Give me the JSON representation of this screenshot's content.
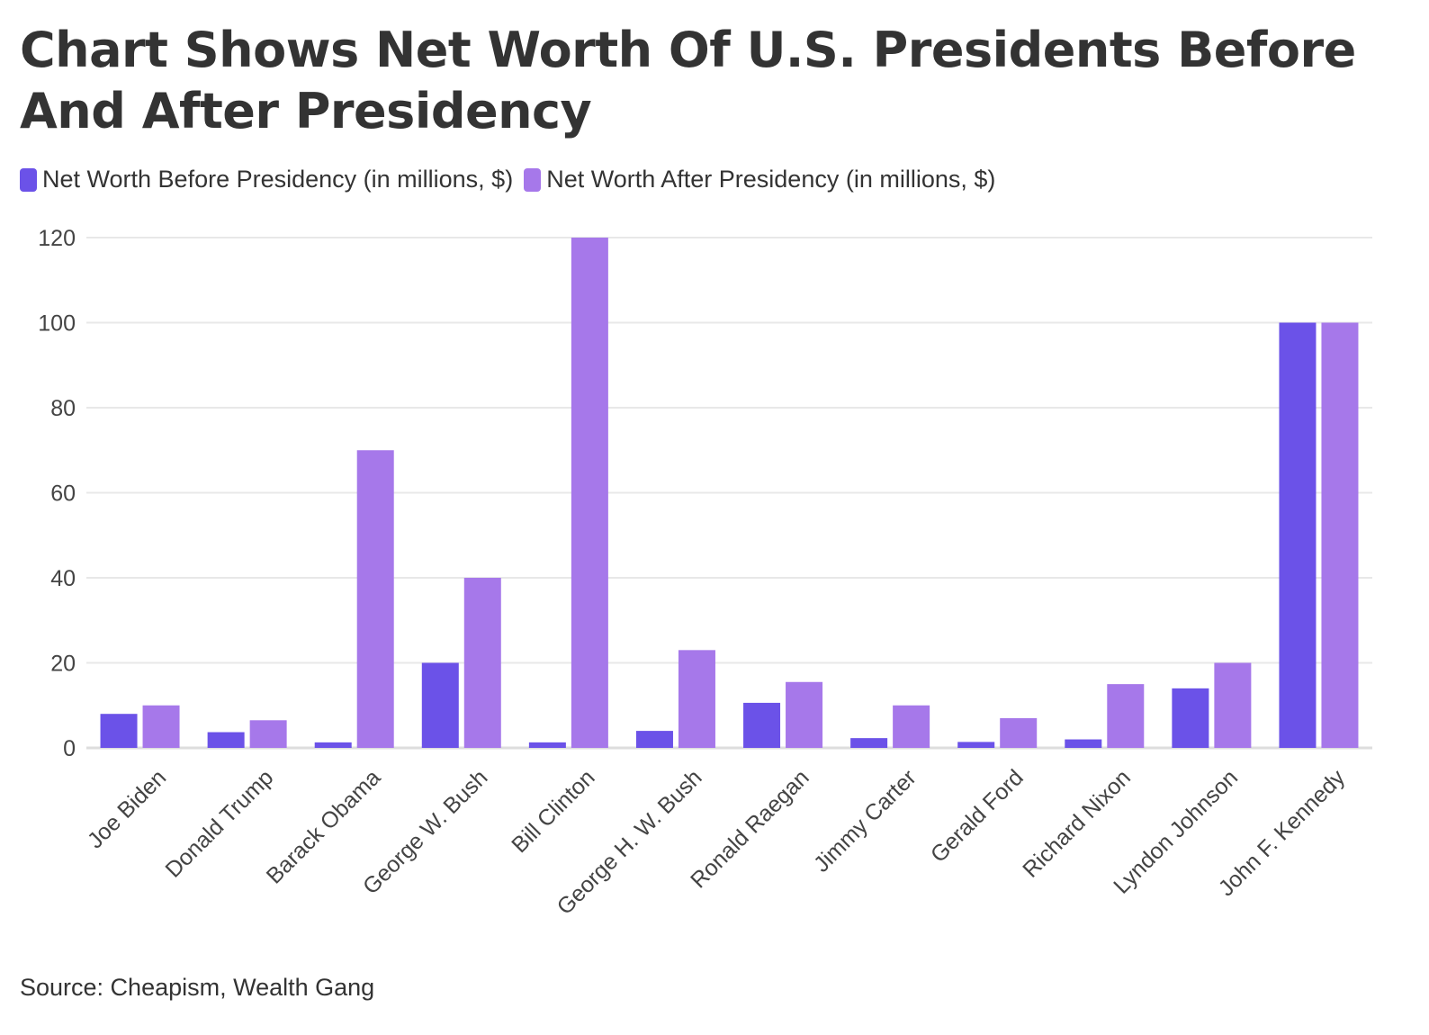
{
  "chart_data": {
    "type": "bar",
    "title": "Chart Shows Net Worth Of U.S. Presidents Before And After Presidency",
    "categories": [
      "Joe Biden",
      "Donald Trump",
      "Barack Obama",
      "George W. Bush",
      "Bill Clinton",
      "George H. W. Bush",
      "Ronald Raegan",
      "Jimmy Carter",
      "Gerald Ford",
      "Richard Nixon",
      "Lyndon Johnson",
      "John F. Kennedy"
    ],
    "series": [
      {
        "name": "Net Worth Before Presidency (in millions, $)",
        "color": "#6b52e8",
        "values": [
          8,
          3.7,
          1.3,
          20,
          1.3,
          4,
          10.6,
          2.3,
          1.4,
          2,
          14,
          100
        ]
      },
      {
        "name": "Net Worth After Presidency (in millions, $)",
        "color": "#a678ea",
        "values": [
          10,
          6.5,
          70,
          40,
          120,
          23,
          15.5,
          10,
          7,
          15,
          20,
          100
        ]
      }
    ],
    "ylim": [
      0,
      120
    ],
    "yticks": [
      0,
      20,
      40,
      60,
      80,
      100,
      120
    ],
    "grid": true,
    "legend": "top-left",
    "source": "Source: Cheapism, Wealth Gang"
  }
}
